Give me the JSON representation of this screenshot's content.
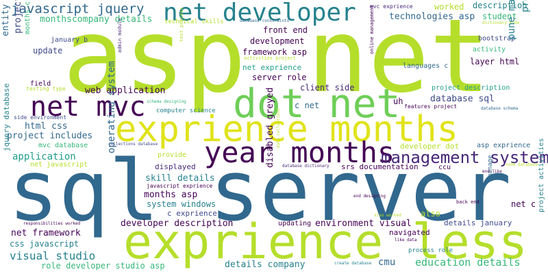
{
  "palette": {
    "lime": "#b5de2b",
    "green": "#6ece58",
    "teal": "#1f9e89",
    "teal_light": "#35b779",
    "blue": "#31688e",
    "navy": "#3e4989",
    "purple": "#440154",
    "dark_purple": "#482878",
    "cyan": "#26828e"
  },
  "words": [
    {
      "text": "asp net"
    },
    {
      "text": "sql server"
    },
    {
      "text": "exprience months"
    },
    {
      "text": "exprience less"
    },
    {
      "text": "net developer"
    },
    {
      "text": "dot net"
    },
    {
      "text": "net mvc"
    },
    {
      "text": "year months"
    },
    {
      "text": "management system"
    },
    {
      "text": "javascript jquery"
    },
    {
      "text": "monthscompany details"
    },
    {
      "text": "technical skills"
    },
    {
      "text": "database constraints"
    },
    {
      "text": "mvc exprience"
    },
    {
      "text": "worked"
    },
    {
      "text": "description"
    },
    {
      "text": "technologies asp"
    },
    {
      "text": "student"
    },
    {
      "text": "dictionary mode"
    },
    {
      "text": "bootstrap"
    },
    {
      "text": "activity"
    },
    {
      "text": "pune maharashtra"
    },
    {
      "text": "presentation layer"
    },
    {
      "text": "front end"
    },
    {
      "text": "development"
    },
    {
      "text": "framework asp"
    },
    {
      "text": "net exprience"
    },
    {
      "text": "server role"
    },
    {
      "text": "client side"
    },
    {
      "text": "c net"
    },
    {
      "text": "layer html"
    },
    {
      "text": "languages c"
    },
    {
      "text": "project description"
    },
    {
      "text": "uh"
    },
    {
      "text": "features project"
    },
    {
      "text": "database schema"
    },
    {
      "text": "database sql"
    },
    {
      "text": "january b"
    },
    {
      "text": "update"
    },
    {
      "text": "months c"
    },
    {
      "text": "field"
    },
    {
      "text": "testing type"
    },
    {
      "text": "entity framework"
    },
    {
      "text": "project name"
    },
    {
      "text": "web application"
    },
    {
      "text": "html css"
    },
    {
      "text": "project includes"
    },
    {
      "text": "side environment"
    },
    {
      "text": "schema designing"
    },
    {
      "text": "computer science"
    },
    {
      "text": "mvc database"
    },
    {
      "text": "collections database"
    },
    {
      "text": "application"
    },
    {
      "text": "net javascript"
    },
    {
      "text": "provide"
    },
    {
      "text": "developer dot"
    },
    {
      "text": "asp exprience"
    },
    {
      "text": "node database"
    },
    {
      "text": "displayed"
    },
    {
      "text": "skill details"
    },
    {
      "text": "javascript exprience"
    },
    {
      "text": "months asp"
    },
    {
      "text": "system windows"
    },
    {
      "text": "c exprience"
    },
    {
      "text": "developer description"
    },
    {
      "text": "operating system"
    },
    {
      "text": "disabled greyed"
    },
    {
      "text": "srs documentation"
    },
    {
      "text": "ccu"
    },
    {
      "text": "manage"
    },
    {
      "text": "net c"
    },
    {
      "text": "end like"
    },
    {
      "text": "database dictionary"
    },
    {
      "text": "data collections"
    },
    {
      "text": "jquery database"
    },
    {
      "text": "responsibilities worked"
    },
    {
      "text": "net framework"
    },
    {
      "text": "css javascript"
    },
    {
      "text": "visual studio"
    },
    {
      "text": "role developer studio asp"
    },
    {
      "text": "updating"
    },
    {
      "text": "environment visual"
    },
    {
      "text": "navigated"
    },
    {
      "text": "like data"
    },
    {
      "text": "details january"
    },
    {
      "text": "details company"
    },
    {
      "text": "cmu"
    },
    {
      "text": "create database"
    },
    {
      "text": "process role"
    },
    {
      "text": "education details"
    },
    {
      "text": "also"
    },
    {
      "text": "also worked"
    },
    {
      "text": "end designing"
    },
    {
      "text": "back end"
    },
    {
      "text": "admin module"
    },
    {
      "text": "test process"
    },
    {
      "text": "activities project"
    },
    {
      "text": "online management"
    },
    {
      "text": "project activities"
    }
  ]
}
